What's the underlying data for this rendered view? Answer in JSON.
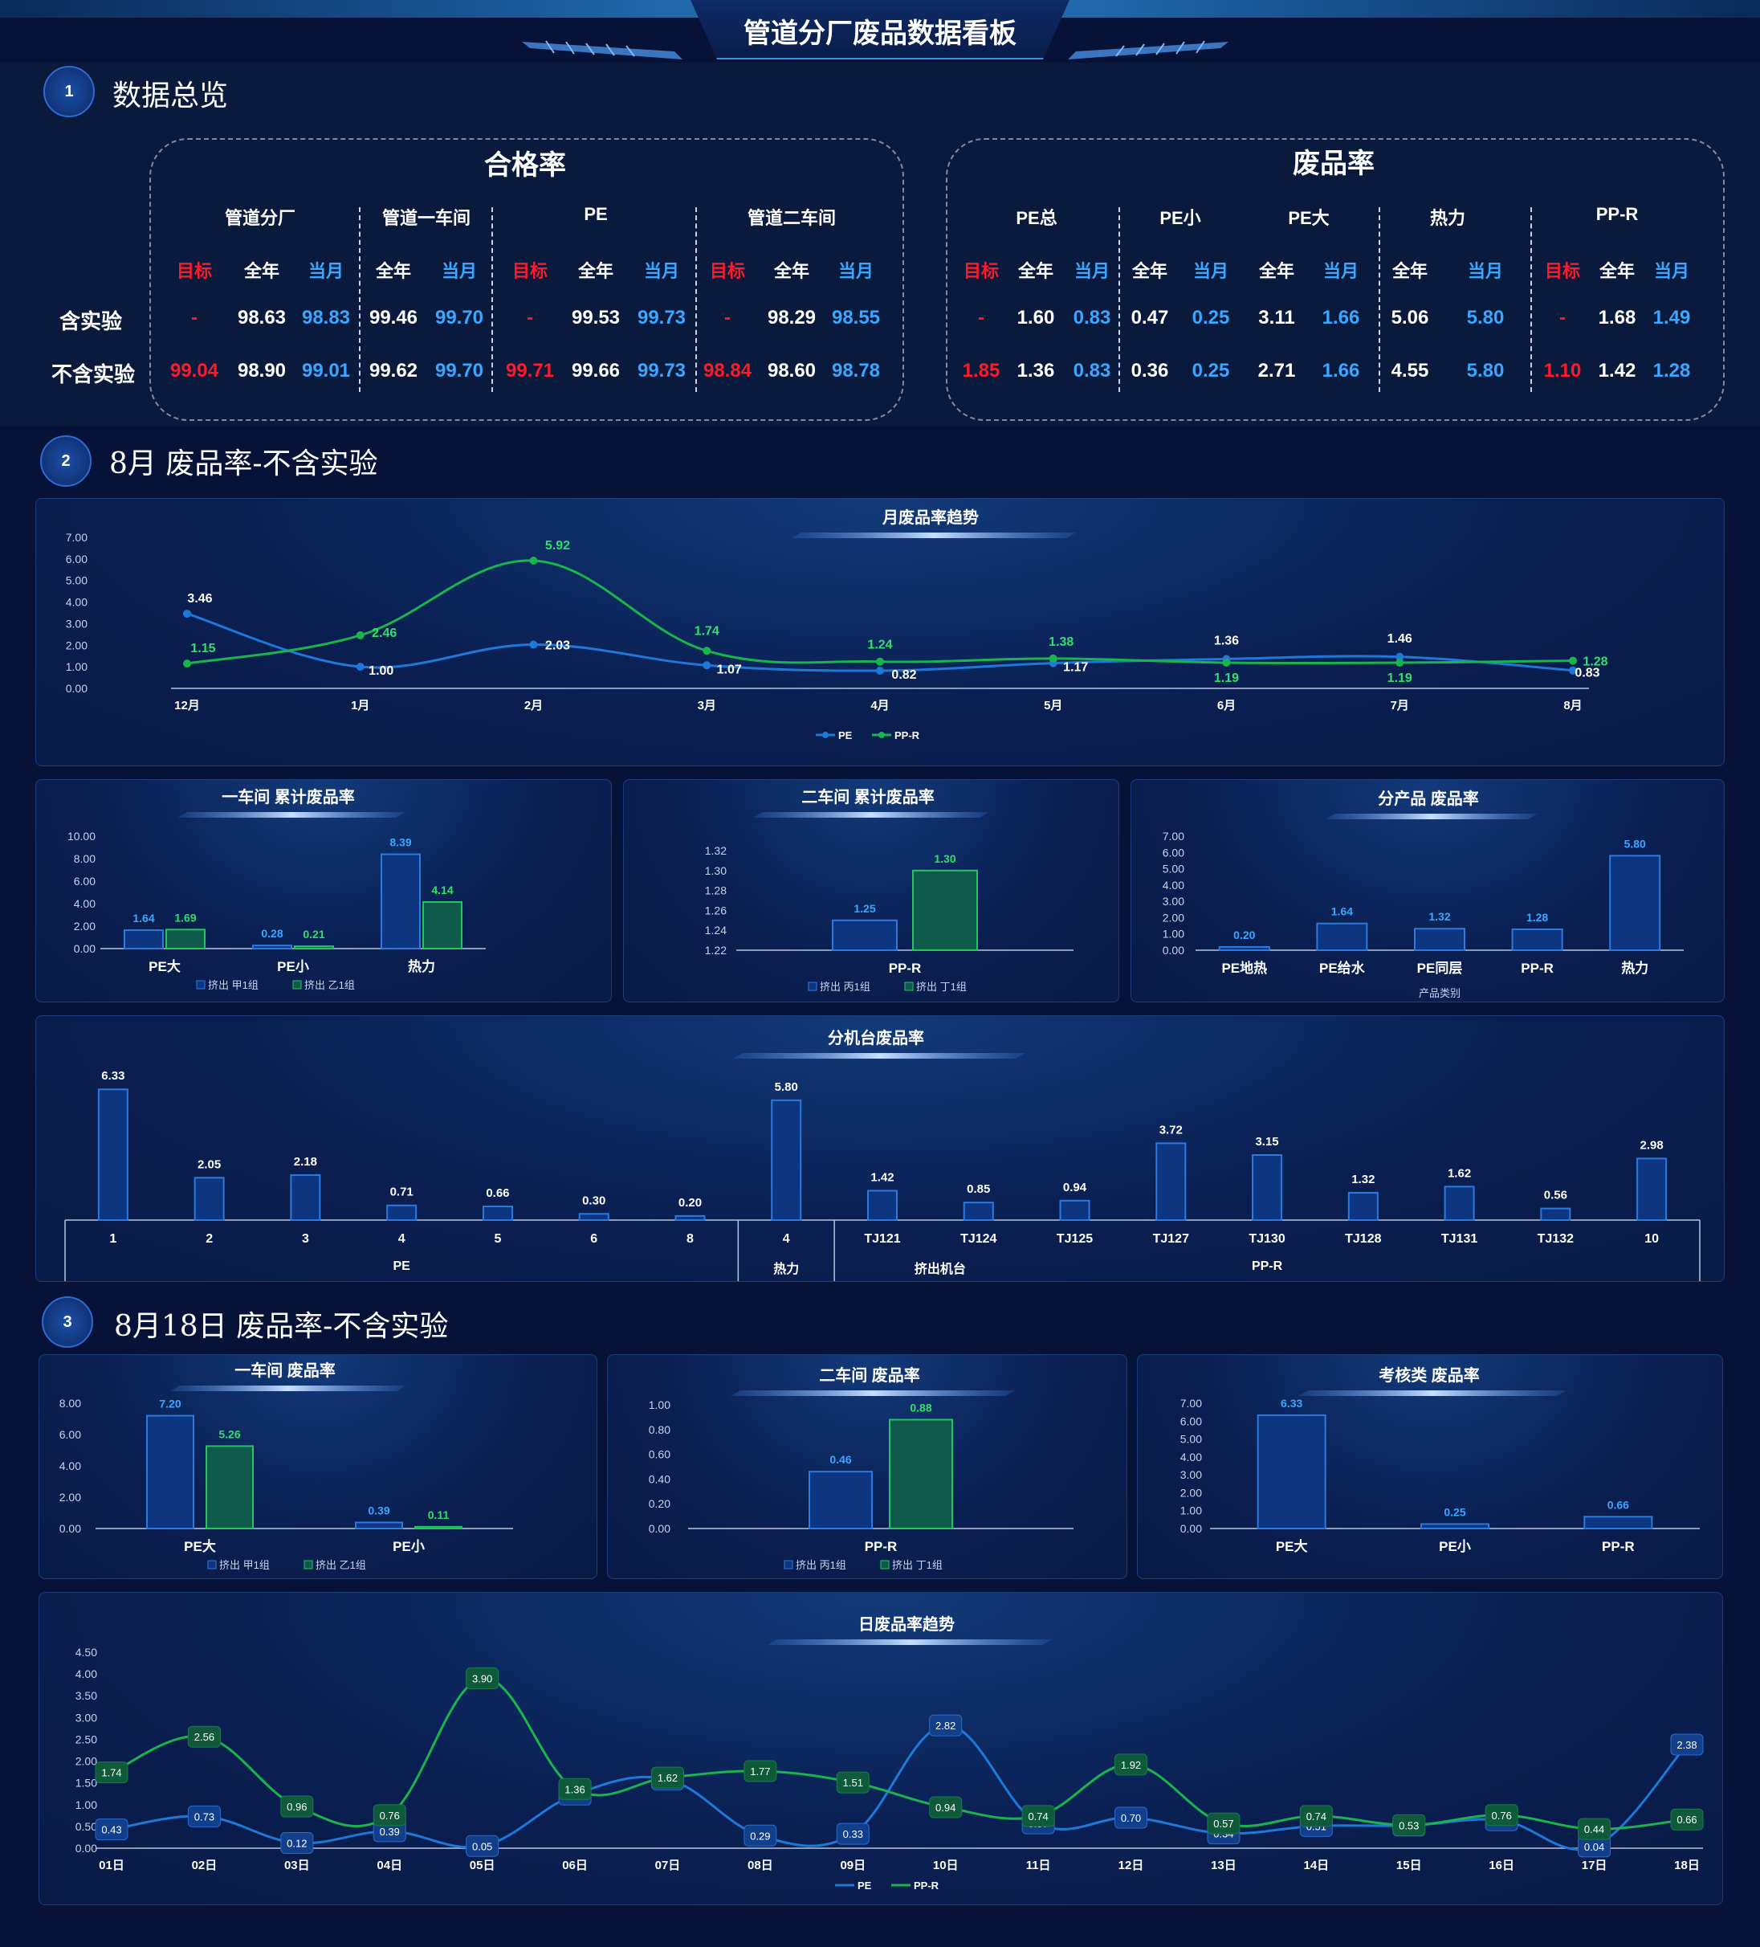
{
  "title": "管道分厂废品数据看板",
  "sections": [
    {
      "num": "1",
      "title": "数据总览"
    },
    {
      "num": "2",
      "title": "8月 废品率-不含实验"
    },
    {
      "num": "3",
      "title": "8月18日 废品率-不含实验"
    }
  ],
  "kpi": {
    "row_labels": [
      "含实验",
      "不含实验"
    ],
    "sub_labels": {
      "target": "目标",
      "year": "全年",
      "month": "当月"
    },
    "pass_rate": {
      "title": "合格率",
      "groups": [
        {
          "name": "管道分厂",
          "target": [
            "-",
            "99.04"
          ],
          "year": [
            "98.63",
            "98.90"
          ],
          "month": [
            "98.83",
            "99.01"
          ]
        },
        {
          "name": "管道一车间",
          "year": [
            "99.46",
            "99.62"
          ],
          "month": [
            "99.70",
            "99.70"
          ]
        },
        {
          "name": "PE",
          "target": [
            "-",
            "99.71"
          ],
          "year": [
            "99.53",
            "99.66"
          ],
          "month": [
            "99.73",
            "99.73"
          ]
        },
        {
          "name": "管道二车间",
          "target": [
            "-",
            "98.84"
          ],
          "year": [
            "98.29",
            "98.60"
          ],
          "month": [
            "98.55",
            "98.78"
          ]
        }
      ]
    },
    "scrap_rate": {
      "title": "废品率",
      "groups": [
        {
          "name": "PE总",
          "target": [
            "-",
            "1.85"
          ],
          "year": [
            "1.60",
            "1.36"
          ],
          "month": [
            "0.83",
            "0.83"
          ]
        },
        {
          "name": "PE小",
          "year": [
            "0.47",
            "0.36"
          ],
          "month": [
            "0.25",
            "0.25"
          ]
        },
        {
          "name": "PE大",
          "year": [
            "3.11",
            "2.71"
          ],
          "month": [
            "1.66",
            "1.66"
          ]
        },
        {
          "name": "热力",
          "year": [
            "5.06",
            "4.55"
          ],
          "month": [
            "5.80",
            "5.80"
          ]
        },
        {
          "name": "PP-R",
          "target": [
            "-",
            "1.10"
          ],
          "year": [
            "1.68",
            "1.42"
          ],
          "month": [
            "1.49",
            "1.28"
          ]
        }
      ]
    }
  },
  "chart_data": [
    {
      "id": "monthly",
      "type": "line",
      "title": "月废品率趋势",
      "categories": [
        "12月",
        "1月",
        "2月",
        "3月",
        "4月",
        "5月",
        "6月",
        "7月",
        "8月"
      ],
      "series": [
        {
          "name": "PE",
          "values": [
            3.46,
            1.0,
            2.03,
            1.07,
            0.82,
            1.17,
            1.36,
            1.46,
            0.83
          ]
        },
        {
          "name": "PP-R",
          "values": [
            1.15,
            2.46,
            5.92,
            1.74,
            1.24,
            1.38,
            1.19,
            1.19,
            1.28
          ]
        }
      ],
      "yticks": [
        "0.00",
        "1.00",
        "2.00",
        "3.00",
        "4.00",
        "5.00",
        "6.00",
        "7.00"
      ],
      "ylim": [
        0,
        7
      ],
      "colors": [
        "#1e78d8",
        "#19b54c"
      ],
      "legend": "bottom-center"
    },
    {
      "id": "ws1cum",
      "type": "bar",
      "title": "一车间 累计废品率",
      "categories": [
        "PE大",
        "PE小",
        "热力"
      ],
      "series": [
        {
          "name": "挤出 甲1组",
          "values": [
            1.64,
            0.28,
            8.39
          ]
        },
        {
          "name": "挤出 乙1组",
          "values": [
            1.69,
            0.21,
            4.14
          ]
        }
      ],
      "yticks": [
        "0.00",
        "2.00",
        "4.00",
        "6.00",
        "8.00",
        "10.00"
      ],
      "ylim": [
        0,
        10
      ],
      "legend": "bottom-center"
    },
    {
      "id": "ws2cum",
      "type": "bar",
      "title": "二车间 累计废品率",
      "categories": [
        "PP-R"
      ],
      "series": [
        {
          "name": "挤出 丙1组",
          "values": [
            1.25
          ]
        },
        {
          "name": "挤出 丁1组",
          "values": [
            1.3
          ]
        }
      ],
      "yticks": [
        "1.22",
        "1.24",
        "1.26",
        "1.28",
        "1.30",
        "1.32"
      ],
      "ylim": [
        1.22,
        1.32
      ],
      "legend": "bottom-center"
    },
    {
      "id": "byproduct",
      "type": "bar",
      "title": "分产品 废品率",
      "categories": [
        "PE地热",
        "PE给水",
        "PE同层",
        "PP-R",
        "热力"
      ],
      "series": [
        {
          "values": [
            0.2,
            1.64,
            1.32,
            1.28,
            5.8
          ]
        }
      ],
      "yticks": [
        "0.00",
        "1.00",
        "2.00",
        "3.00",
        "4.00",
        "5.00",
        "6.00",
        "7.00"
      ],
      "ylim": [
        0,
        7
      ],
      "xlabel": "产品类别"
    },
    {
      "id": "bymachine",
      "type": "bar",
      "title": "分机台废品率",
      "categories": [
        "1",
        "2",
        "3",
        "4",
        "5",
        "6",
        "8",
        "4",
        "TJ121",
        "TJ124",
        "TJ125",
        "TJ127",
        "TJ130",
        "TJ128",
        "TJ131",
        "TJ132",
        "10"
      ],
      "series": [
        {
          "values": [
            6.33,
            2.05,
            2.18,
            0.71,
            0.66,
            0.3,
            0.2,
            5.8,
            1.42,
            0.85,
            0.94,
            3.72,
            3.15,
            1.32,
            1.62,
            0.56,
            2.98
          ]
        }
      ],
      "ylim": [
        0,
        7
      ],
      "groups": [
        "PE",
        "热力",
        "PP-R"
      ],
      "group_caption": "挤出机台"
    },
    {
      "id": "ws1day",
      "type": "bar",
      "title": "一车间 废品率",
      "categories": [
        "PE大",
        "PE小"
      ],
      "series": [
        {
          "name": "挤出 甲1组",
          "values": [
            7.2,
            0.39
          ]
        },
        {
          "name": "挤出 乙1组",
          "values": [
            5.26,
            0.11
          ]
        }
      ],
      "yticks": [
        "0.00",
        "2.00",
        "4.00",
        "6.00",
        "8.00"
      ],
      "ylim": [
        0,
        8
      ],
      "legend": "bottom-center"
    },
    {
      "id": "ws2day",
      "type": "bar",
      "title": "二车间 废品率",
      "categories": [
        "PP-R"
      ],
      "series": [
        {
          "name": "挤出 丙1组",
          "values": [
            0.46
          ]
        },
        {
          "name": "挤出 丁1组",
          "values": [
            0.88
          ]
        }
      ],
      "yticks": [
        "0.00",
        "0.20",
        "0.40",
        "0.60",
        "0.80",
        "1.00"
      ],
      "ylim": [
        0,
        1
      ],
      "legend": "bottom-center"
    },
    {
      "id": "assess",
      "type": "bar",
      "title": "考核类 废品率",
      "categories": [
        "PE大",
        "PE小",
        "PP-R"
      ],
      "series": [
        {
          "values": [
            6.33,
            0.25,
            0.66
          ]
        }
      ],
      "yticks": [
        "0.00",
        "1.00",
        "2.00",
        "3.00",
        "4.00",
        "5.00",
        "6.00",
        "7.00"
      ],
      "ylim": [
        0,
        7
      ]
    },
    {
      "id": "daily",
      "type": "line",
      "title": "日废品率趋势",
      "categories": [
        "01日",
        "02日",
        "03日",
        "04日",
        "05日",
        "06日",
        "07日",
        "08日",
        "09日",
        "10日",
        "11日",
        "12日",
        "13日",
        "14日",
        "15日",
        "16日",
        "17日",
        "18日"
      ],
      "series": [
        {
          "name": "PE",
          "values": [
            0.43,
            0.73,
            0.12,
            0.39,
            0.05,
            1.23,
            1.58,
            0.29,
            0.33,
            2.82,
            0.57,
            0.7,
            0.34,
            0.51,
            0.52,
            0.64,
            0.04,
            2.38
          ]
        },
        {
          "name": "PP-R",
          "values": [
            1.74,
            2.56,
            0.96,
            0.76,
            3.9,
            1.36,
            1.62,
            1.77,
            1.51,
            0.94,
            0.74,
            1.92,
            0.57,
            0.74,
            0.53,
            0.76,
            0.44,
            0.66
          ]
        }
      ],
      "yticks": [
        "0.00",
        "0.50",
        "1.00",
        "1.50",
        "2.00",
        "2.50",
        "3.00",
        "3.50",
        "4.00",
        "4.50"
      ],
      "ylim": [
        0,
        4.5
      ],
      "colors": [
        "#1e78d8",
        "#19b54c"
      ],
      "legend": "bottom-center"
    }
  ]
}
